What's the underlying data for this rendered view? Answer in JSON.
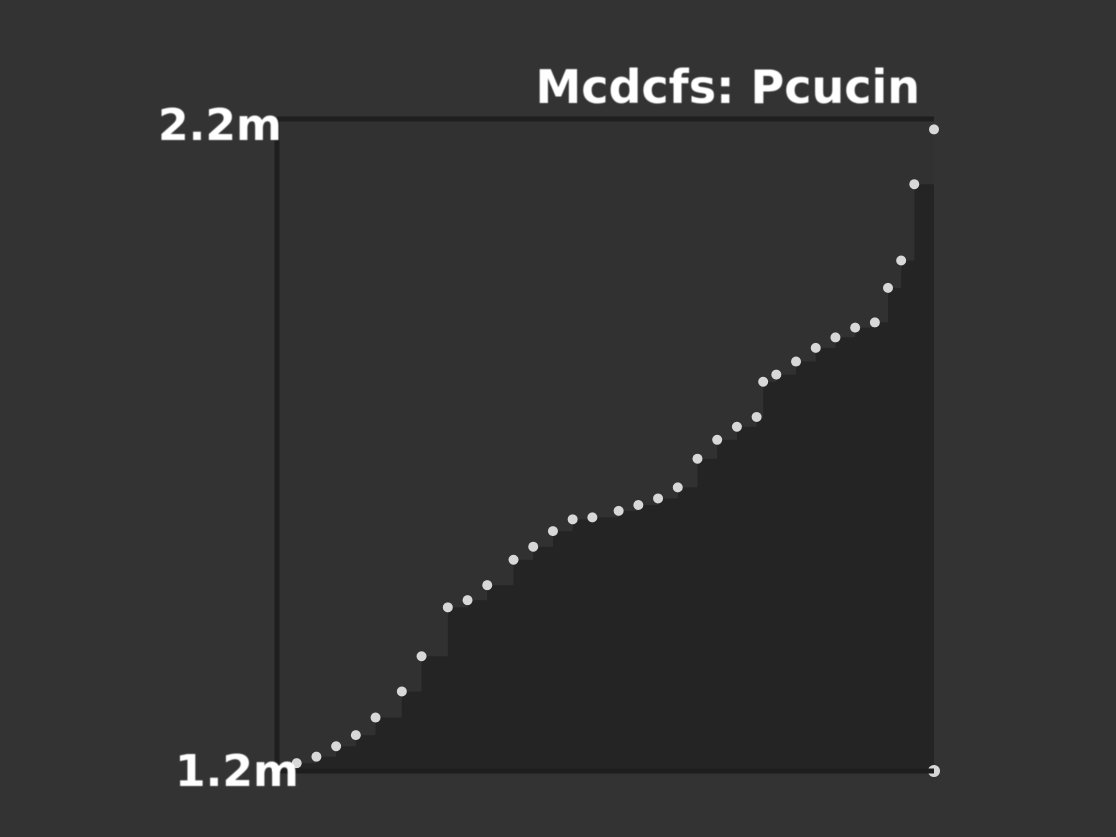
{
  "chart_data": {
    "type": "area",
    "title": "Mcdcfs: Pcucin",
    "y_tick_labels": [
      "2.2m",
      "1.2m"
    ],
    "ylim": [
      1.2,
      2.2
    ],
    "xlim": [
      0,
      1
    ],
    "x": [
      0.0,
      0.03,
      0.06,
      0.09,
      0.12,
      0.15,
      0.19,
      0.22,
      0.26,
      0.29,
      0.32,
      0.36,
      0.39,
      0.42,
      0.45,
      0.48,
      0.52,
      0.55,
      0.58,
      0.61,
      0.64,
      0.67,
      0.7,
      0.73,
      0.74,
      0.76,
      0.79,
      0.82,
      0.85,
      0.88,
      0.91,
      0.93,
      0.95,
      0.97,
      1.0
    ],
    "y": [
      1.202,
      1.212,
      1.222,
      1.238,
      1.255,
      1.282,
      1.322,
      1.376,
      1.451,
      1.462,
      1.485,
      1.524,
      1.544,
      1.568,
      1.586,
      1.589,
      1.599,
      1.608,
      1.618,
      1.635,
      1.679,
      1.708,
      1.728,
      1.743,
      1.797,
      1.808,
      1.828,
      1.849,
      1.865,
      1.88,
      1.888,
      1.941,
      1.983,
      2.1,
      2.184
    ],
    "colors": {
      "background": "#333333",
      "plot_background": "#313131",
      "fill": "#242424",
      "axis": "#1e1e1e",
      "marker": "#d8d8d8",
      "text": "#ffffff"
    }
  }
}
